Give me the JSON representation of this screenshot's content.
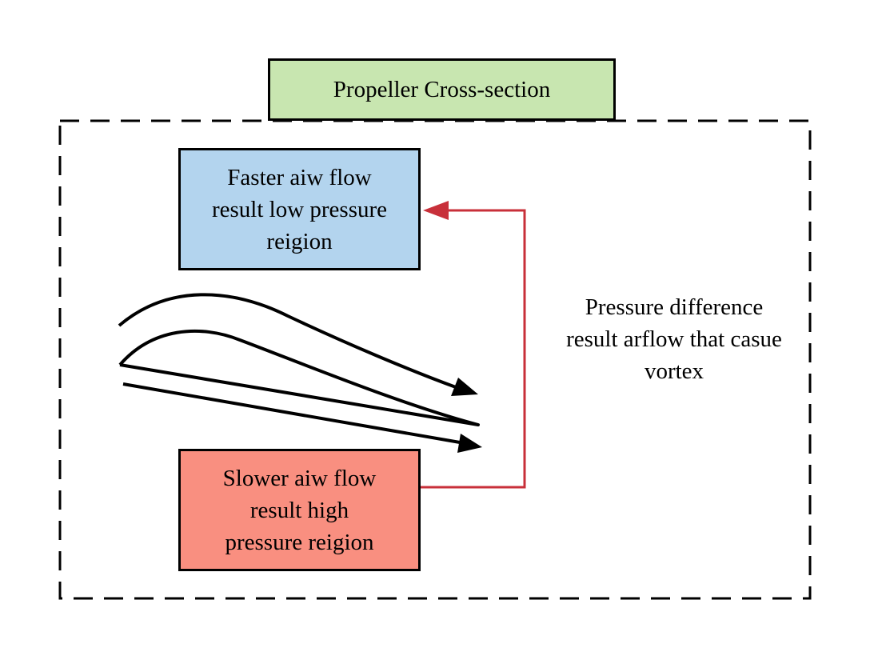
{
  "title_box": {
    "label": "Propeller Cross-section",
    "fill": "#c8e6b0"
  },
  "faster_box": {
    "lines": [
      "Faster aiw flow",
      "result low pressure",
      "reigion"
    ],
    "fill": "#b3d4ee"
  },
  "slower_box": {
    "lines": [
      "Slower aiw flow",
      "result high",
      "pressure reigion"
    ],
    "fill": "#f98f80"
  },
  "pressure_note": {
    "lines": [
      "Pressure difference",
      "result arflow that casue",
      "vortex"
    ]
  },
  "colors": {
    "connector": "#c8303a",
    "outline": "#000000",
    "frame_dash": "#000000"
  },
  "icons": {
    "flow_arrows": "curved-arrow-icon",
    "airfoil": "airfoil-shape"
  }
}
